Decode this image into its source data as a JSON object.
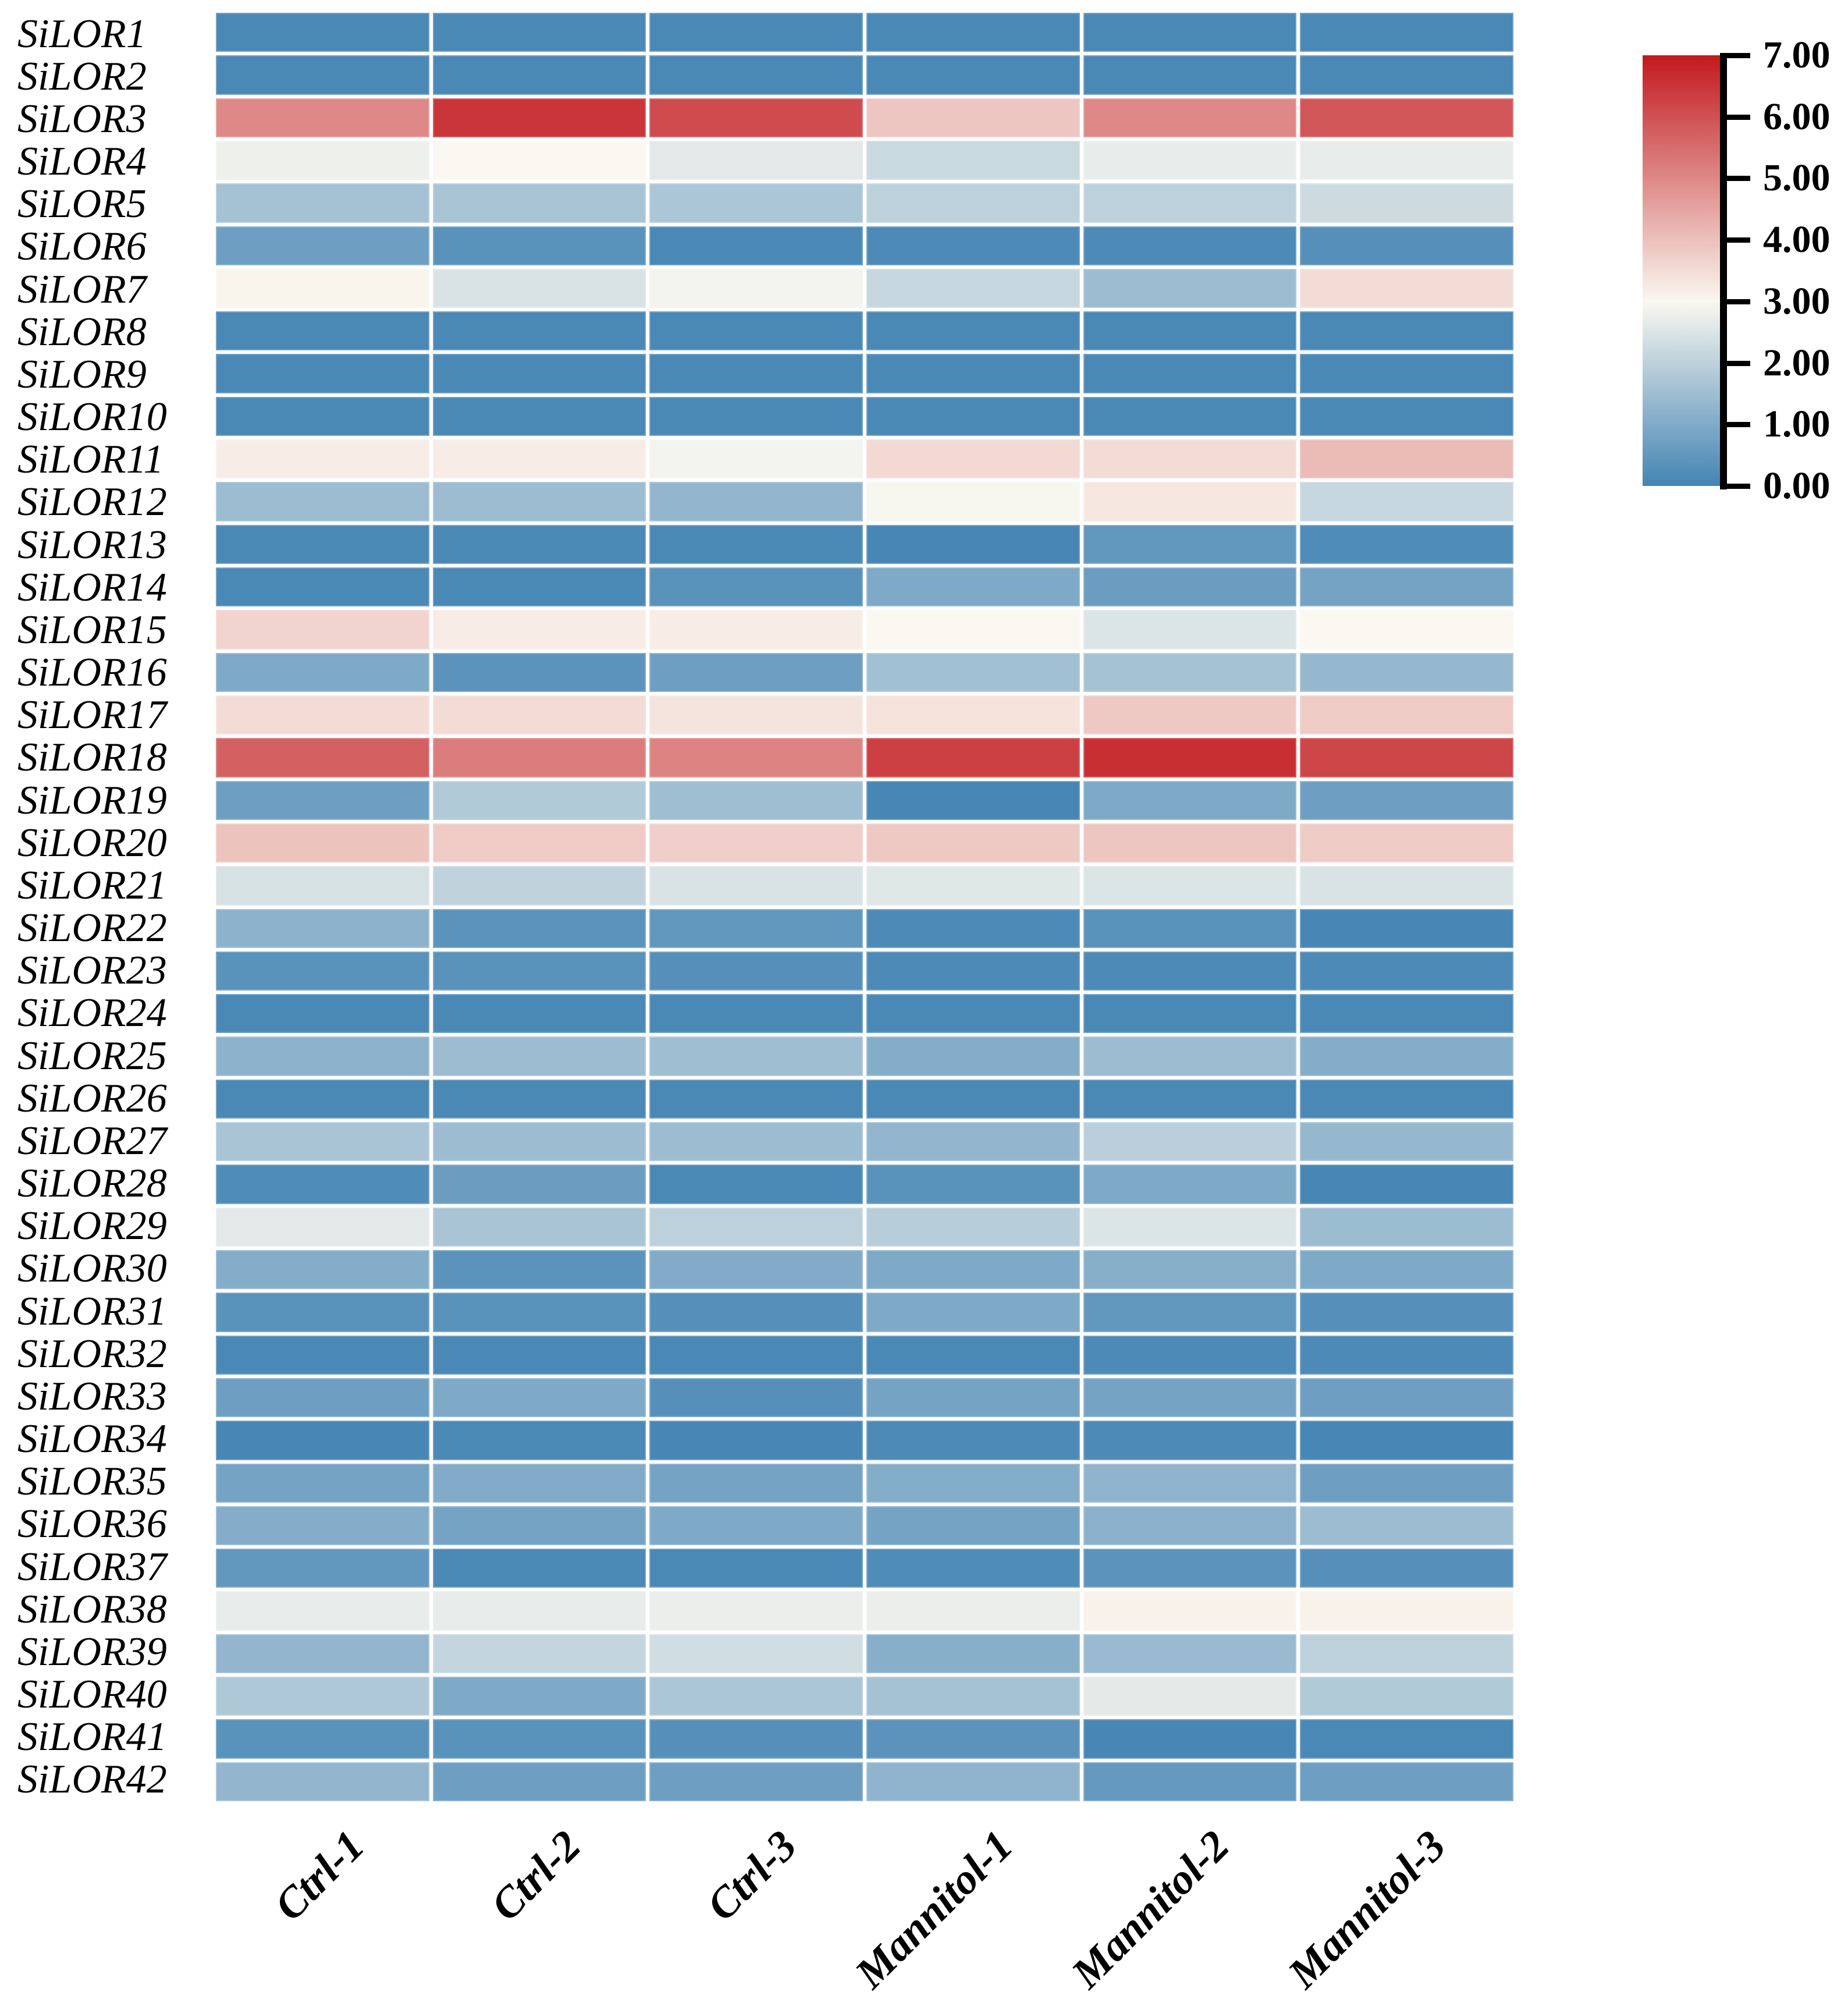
{
  "figure": {
    "background_color": "#ffffff",
    "cell_gap_color": "#ffffff",
    "text_color": "#000000",
    "legend_axis_color": "#000000"
  },
  "chart_data": {
    "type": "heatmap",
    "rows": [
      "SiLOR1",
      "SiLOR2",
      "SiLOR3",
      "SiLOR4",
      "SiLOR5",
      "SiLOR6",
      "SiLOR7",
      "SiLOR8",
      "SiLOR9",
      "SiLOR10",
      "SiLOR11",
      "SiLOR12",
      "SiLOR13",
      "SiLOR14",
      "SiLOR15",
      "SiLOR16",
      "SiLOR17",
      "SiLOR18",
      "SiLOR19",
      "SiLOR20",
      "SiLOR21",
      "SiLOR22",
      "SiLOR23",
      "SiLOR24",
      "SiLOR25",
      "SiLOR26",
      "SiLOR27",
      "SiLOR28",
      "SiLOR29",
      "SiLOR30",
      "SiLOR31",
      "SiLOR32",
      "SiLOR33",
      "SiLOR34",
      "SiLOR35",
      "SiLOR36",
      "SiLOR37",
      "SiLOR38",
      "SiLOR39",
      "SiLOR40",
      "SiLOR41",
      "SiLOR42"
    ],
    "columns": [
      "Ctrl-1",
      "Ctrl-2",
      "Ctrl-3",
      "Mannitol-1",
      "Mannitol-2",
      "Mannitol-3"
    ],
    "values": [
      [
        0.1,
        0.1,
        0.1,
        0.1,
        0.1,
        0.1
      ],
      [
        0.1,
        0.1,
        0.1,
        0.1,
        0.1,
        0.1
      ],
      [
        5.0,
        6.5,
        6.1,
        3.9,
        5.0,
        5.9
      ],
      [
        2.8,
        3.0,
        2.6,
        2.2,
        2.7,
        2.7
      ],
      [
        1.6,
        1.65,
        1.7,
        2.0,
        2.0,
        2.25
      ],
      [
        0.7,
        0.35,
        0.1,
        0.15,
        0.15,
        0.3
      ],
      [
        3.05,
        2.45,
        2.9,
        2.15,
        1.45,
        3.5
      ],
      [
        0.1,
        0.1,
        0.1,
        0.1,
        0.1,
        0.1
      ],
      [
        0.1,
        0.1,
        0.1,
        0.1,
        0.1,
        0.1
      ],
      [
        0.1,
        0.1,
        0.1,
        0.1,
        0.1,
        0.1
      ],
      [
        3.2,
        3.2,
        2.9,
        3.55,
        3.5,
        4.1
      ],
      [
        1.45,
        1.45,
        1.3,
        2.95,
        3.3,
        2.15
      ],
      [
        0.1,
        0.1,
        0.1,
        0.05,
        0.5,
        0.2
      ],
      [
        0.1,
        0.1,
        0.35,
        0.95,
        0.65,
        0.8
      ],
      [
        3.65,
        3.2,
        3.2,
        3.0,
        2.5,
        3.0
      ],
      [
        0.95,
        0.4,
        0.7,
        1.55,
        1.6,
        1.35
      ],
      [
        3.5,
        3.5,
        3.35,
        3.4,
        3.85,
        3.8
      ],
      [
        5.7,
        5.2,
        5.1,
        6.3,
        6.6,
        6.2
      ],
      [
        0.7,
        1.8,
        1.5,
        0.05,
        0.95,
        0.7
      ],
      [
        3.95,
        3.8,
        3.75,
        3.85,
        3.9,
        3.8
      ],
      [
        2.4,
        2.05,
        2.45,
        2.55,
        2.5,
        2.45
      ],
      [
        1.2,
        0.4,
        0.5,
        0.15,
        0.35,
        0.05
      ],
      [
        0.35,
        0.35,
        0.3,
        0.15,
        0.15,
        0.15
      ],
      [
        0.1,
        0.1,
        0.1,
        0.1,
        0.1,
        0.1
      ],
      [
        1.2,
        1.45,
        1.5,
        1.05,
        1.45,
        1.05
      ],
      [
        0.1,
        0.1,
        0.1,
        0.1,
        0.1,
        0.1
      ],
      [
        1.65,
        1.45,
        1.45,
        1.3,
        1.95,
        1.35
      ],
      [
        0.2,
        0.65,
        0.1,
        0.35,
        0.95,
        0.05
      ],
      [
        2.6,
        1.65,
        2.0,
        1.9,
        2.5,
        1.45
      ],
      [
        1.05,
        0.4,
        1.0,
        0.95,
        1.1,
        0.95
      ],
      [
        0.35,
        0.35,
        0.3,
        0.95,
        0.5,
        0.3
      ],
      [
        0.1,
        0.1,
        0.1,
        0.1,
        0.15,
        0.15
      ],
      [
        0.7,
        0.95,
        0.3,
        0.8,
        0.8,
        0.7
      ],
      [
        0.05,
        0.1,
        0.05,
        0.15,
        0.15,
        0.05
      ],
      [
        0.8,
        1.0,
        0.8,
        1.05,
        1.25,
        0.7
      ],
      [
        1.05,
        0.8,
        0.95,
        0.8,
        1.15,
        1.45
      ],
      [
        0.5,
        0.1,
        0.1,
        0.2,
        0.4,
        0.3
      ],
      [
        2.7,
        2.7,
        2.75,
        2.75,
        3.1,
        3.1
      ],
      [
        1.3,
        2.1,
        2.3,
        1.1,
        1.4,
        2.0
      ],
      [
        1.75,
        0.95,
        1.7,
        1.6,
        2.65,
        1.8
      ],
      [
        0.35,
        0.35,
        0.3,
        0.4,
        0.05,
        0.1
      ],
      [
        1.3,
        0.7,
        0.7,
        1.25,
        0.55,
        0.7
      ]
    ],
    "colormap": {
      "stops": [
        {
          "value": 0,
          "color": "#4484b4"
        },
        {
          "value": 3,
          "color": "#faf8f0"
        },
        {
          "value": 7,
          "color": "#c2191e"
        }
      ]
    },
    "colorbar": {
      "min": 0,
      "max": 7,
      "tick_labels": [
        "7.00",
        "6.00",
        "5.00",
        "4.00",
        "3.00",
        "2.00",
        "1.00",
        "0.00"
      ],
      "tick_values": [
        7,
        6,
        5,
        4,
        3,
        2,
        1,
        0
      ],
      "position": "right"
    },
    "title": "",
    "xlabel": "",
    "ylabel": "",
    "grid": false,
    "row_label_style": "italic-serif",
    "col_label_style": "bold-italic-serif-rotated-45"
  }
}
